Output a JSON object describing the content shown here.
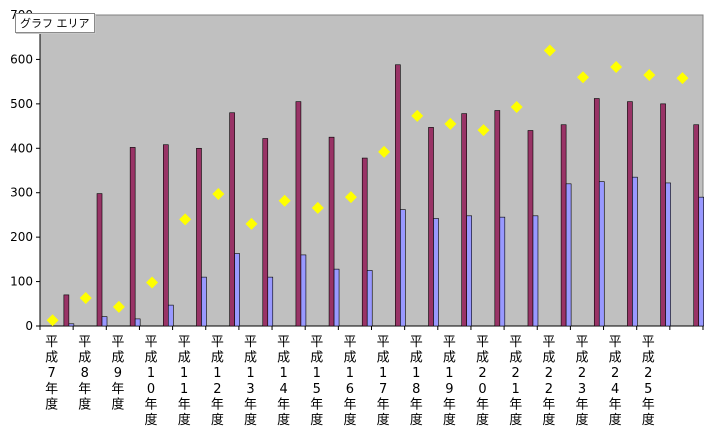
{
  "tooltip": "グラフ エリア",
  "colors": {
    "plot_bg": "#c0c0c0",
    "series1": "#993366",
    "series2": "#9999ff",
    "series3": "#ffff00"
  },
  "chart_data": {
    "type": "bar",
    "categories": [
      "平成7年度",
      "平成8年度",
      "平成9年度",
      "平成10年度",
      "平成11年度",
      "平成12年度",
      "平成13年度",
      "平成14年度",
      "平成15年度",
      "平成16年度",
      "平成17年度",
      "平成18年度",
      "平成19年度",
      "平成20年度",
      "平成21年度",
      "平成22年度",
      "平成23年度",
      "平成24年度",
      "平成25年度",
      ""
    ],
    "series": [
      {
        "type": "bar",
        "values": [
          70,
          298,
          402,
          408,
          400,
          480,
          422,
          505,
          425,
          378,
          588,
          447,
          478,
          485,
          440,
          453,
          512,
          505,
          500,
          453
        ]
      },
      {
        "type": "bar",
        "values": [
          5,
          21,
          16,
          47,
          110,
          163,
          110,
          160,
          128,
          125,
          262,
          242,
          248,
          245,
          248,
          320,
          325,
          335,
          322,
          290
        ]
      },
      {
        "type": "scatter",
        "marker": "diamond",
        "values": [
          13,
          63,
          43,
          98,
          240,
          297,
          230,
          282,
          266,
          290,
          392,
          473,
          455,
          441,
          493,
          620,
          560,
          583,
          565,
          558
        ]
      }
    ],
    "yticks": [
      0,
      100,
      200,
      300,
      400,
      500,
      600
    ],
    "ylim": [
      0,
      700
    ],
    "grid": false
  }
}
